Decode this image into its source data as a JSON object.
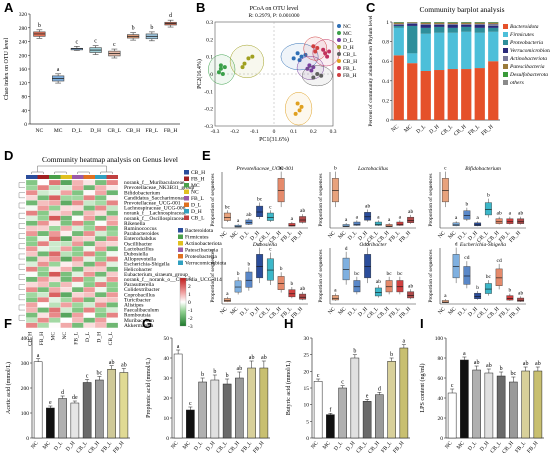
{
  "panels": {
    "A": "A",
    "B": "B",
    "C": "C",
    "D": "D",
    "E": "E",
    "F": "F",
    "G": "G",
    "H": "H",
    "I": "I"
  },
  "groups": [
    "NC",
    "MC",
    "D_L",
    "D_H",
    "CB_L",
    "CB_H",
    "FB_L",
    "FB_H"
  ],
  "group_labels": [
    "NC",
    "MC",
    "D_L",
    "D_H",
    "CB_L",
    "CB_H",
    "FB_L",
    "FB_H"
  ],
  "chart_data": [
    {
      "id": "A",
      "type": "box",
      "ylabel": "Chao index on OTU level",
      "ylim": [
        0,
        320
      ],
      "yticks": [
        0,
        40,
        80,
        120,
        160,
        200,
        240,
        280,
        320
      ],
      "categories": [
        "NC",
        "MC",
        "D_L",
        "D_H",
        "CB_L",
        "CB_H",
        "FB_L",
        "FB_H"
      ],
      "medians": [
        262,
        132,
        220,
        215,
        205,
        255,
        255,
        292
      ],
      "q1": [
        255,
        125,
        220,
        208,
        198,
        250,
        248,
        288
      ],
      "q3": [
        268,
        140,
        220,
        222,
        212,
        260,
        262,
        296
      ],
      "letters": [
        "b",
        "a",
        "c",
        "c",
        "c",
        "b",
        "b",
        "d"
      ],
      "colors": [
        "#e7755a",
        "#7fb0e0",
        "#7fb0e0",
        "#9fd0d8",
        "#e7b9a6",
        "#e8a27c",
        "#9fc8e0",
        "#e7755a"
      ]
    },
    {
      "id": "B",
      "type": "scatter",
      "title": "PCoA on OTU level",
      "subtitle": "R: 0.2979, P: 0.001000",
      "xlabel": "PC1(31.6%)",
      "ylabel": "PC2(16.4%)",
      "xlim": [
        -0.3,
        0.3
      ],
      "ylim": [
        -0.3,
        0.3
      ],
      "series": [
        {
          "name": "NC",
          "color": "#2f6fb5",
          "points": [
            [
              0.12,
              0.12
            ],
            [
              0.14,
              0.1
            ],
            [
              0.1,
              0.09
            ],
            [
              0.13,
              0.08
            ],
            [
              0.16,
              0.11
            ]
          ]
        },
        {
          "name": "MC",
          "color": "#3aa04a",
          "points": [
            [
              -0.27,
              0.03
            ],
            [
              -0.28,
              0.01
            ],
            [
              -0.25,
              0.04
            ],
            [
              -0.26,
              0.0
            ],
            [
              -0.27,
              0.05
            ]
          ]
        },
        {
          "name": "D_L",
          "color": "#7a3ea0",
          "points": [
            [
              0.17,
              0.03
            ],
            [
              0.19,
              0.02
            ],
            [
              0.18,
              0.05
            ],
            [
              0.2,
              0.04
            ]
          ]
        },
        {
          "name": "D_H",
          "color": "#a0a020",
          "points": [
            [
              -0.15,
              0.06
            ],
            [
              -0.16,
              0.04
            ],
            [
              -0.13,
              0.09
            ],
            [
              -0.11,
              0.1
            ]
          ]
        },
        {
          "name": "CB_L",
          "color": "#606060",
          "points": [
            [
              0.2,
              -0.02
            ],
            [
              0.22,
              0.0
            ],
            [
              0.24,
              -0.01
            ]
          ]
        },
        {
          "name": "CB_H",
          "color": "#e0a020",
          "points": [
            [
              0.12,
              -0.17
            ],
            [
              0.14,
              -0.19
            ],
            [
              0.13,
              -0.21
            ],
            [
              0.11,
              -0.23
            ]
          ]
        },
        {
          "name": "FB_L",
          "color": "#c03060",
          "points": [
            [
              0.26,
              0.12
            ],
            [
              0.27,
              0.1
            ],
            [
              0.25,
              0.14
            ],
            [
              0.28,
              0.13
            ]
          ]
        },
        {
          "name": "FB_H",
          "color": "#d04040",
          "points": [
            [
              0.2,
              0.16
            ],
            [
              0.22,
              0.15
            ],
            [
              0.21,
              0.13
            ]
          ]
        }
      ]
    },
    {
      "id": "C",
      "type": "stacked_bar",
      "title": "Community barplot analysis",
      "ylabel": "Percent of community abundance on Phylum level",
      "ylim": [
        0,
        1
      ],
      "yticks": [
        0,
        0.2,
        0.4,
        0.6,
        0.8,
        1.0
      ],
      "categories": [
        "NC",
        "MC",
        "D_L",
        "D_H",
        "CB_L",
        "CB_H",
        "FB_L",
        "FB_H"
      ],
      "series": [
        {
          "name": "Bacteroidota",
          "color": "#e5512a",
          "values": [
            0.66,
            0.58,
            0.5,
            0.51,
            0.52,
            0.52,
            0.53,
            0.6
          ]
        },
        {
          "name": "Firmicutes",
          "color": "#4dbfd9",
          "values": [
            0.28,
            0.1,
            0.38,
            0.38,
            0.37,
            0.38,
            0.36,
            0.3
          ]
        },
        {
          "name": "Proteobacteria",
          "color": "#2f8f9b",
          "values": [
            0.02,
            0.28,
            0.06,
            0.06,
            0.05,
            0.05,
            0.05,
            0.04
          ]
        },
        {
          "name": "Verrucomicrobiota",
          "color": "#2a2a7a",
          "values": [
            0.01,
            0.02,
            0.03,
            0.02,
            0.03,
            0.02,
            0.03,
            0.02
          ]
        },
        {
          "name": "Actinobacteriota",
          "color": "#7a7a9a",
          "values": [
            0.01,
            0.01,
            0.01,
            0.01,
            0.01,
            0.01,
            0.01,
            0.02
          ]
        },
        {
          "name": "Patescibacteria",
          "color": "#9a7a3a",
          "values": [
            0.01,
            0.005,
            0.01,
            0.01,
            0.01,
            0.01,
            0.01,
            0.01
          ]
        },
        {
          "name": "Desulfobacterota",
          "color": "#3a9a3a",
          "values": [
            0.005,
            0.003,
            0.005,
            0.005,
            0.005,
            0.005,
            0.005,
            0.005
          ]
        },
        {
          "name": "others",
          "color": "#8a8a8a",
          "values": [
            0.005,
            0.002,
            0.005,
            0.005,
            0.005,
            0.005,
            0.005,
            0.005
          ]
        }
      ]
    },
    {
      "id": "D",
      "type": "heatmap",
      "title": "Community heatmap analysis on Genus level",
      "columns": [
        "CB_H",
        "FB_H",
        "MC",
        "NC",
        "FB_L",
        "D_L",
        "D_H",
        "CB_L"
      ],
      "rows": [
        "norank_f__Muribaculaceae",
        "Prevotellaceae_NK3B31_group",
        "Bifidobacterium",
        "Candidatus_Saccharimonas",
        "Prevotellaceae_UCG-001",
        "Lachnospiraceae_UCG-006",
        "norank_f__Lachnospiraceae",
        "norank_f__Oscillospiraceae",
        "Rikenella",
        "Ruminococcus",
        "Parabacteroides",
        "Enterorhabdus",
        "Oscillibacter",
        "Lactobacillus",
        "Dubosiella",
        "Alloprevotella",
        "Escherichia-Shigella",
        "Helicobacter",
        "Eubacterium_siraeum_group",
        "norank_f__norank_o__Clostridia_UCG-014",
        "Parasutterella",
        "Colidextribacter",
        "Coprobacillus",
        "Turicibacter",
        "Alistipes",
        "Faecalibaculum",
        "Romboutsia",
        "Muribaculum",
        "Akkermansia"
      ],
      "phyla": [
        {
          "name": "Bacteroidota",
          "color": "#2b4d9b"
        },
        {
          "name": "Firmicutes",
          "color": "#4aa04a"
        },
        {
          "name": "Actinobacteriota",
          "color": "#e0c020"
        },
        {
          "name": "Patescibacteria",
          "color": "#9a5aa8"
        },
        {
          "name": "Proteobacteria",
          "color": "#e07020"
        },
        {
          "name": "Verrucomicrobiota",
          "color": "#30a0c0"
        }
      ],
      "groups_legend": [
        {
          "name": "CB_H",
          "color": "#2b4d9b"
        },
        {
          "name": "FB_H",
          "color": "#a02020"
        },
        {
          "name": "MC",
          "color": "#4aa04a"
        },
        {
          "name": "NC",
          "color": "#e0c020"
        },
        {
          "name": "FB_L",
          "color": "#9a5aa8"
        },
        {
          "name": "D_L",
          "color": "#e07020"
        },
        {
          "name": "D_H",
          "color": "#30a0c0"
        },
        {
          "name": "CB_L",
          "color": "#c04040"
        }
      ],
      "colorbar": {
        "min": -3,
        "max": 3,
        "ticks": [
          "3",
          "2",
          "1",
          "0",
          "-1",
          "-2",
          "-3"
        ]
      }
    },
    {
      "id": "E",
      "type": "box_multi",
      "subplots": [
        {
          "title": "Prevotellaceae_UCG-001",
          "ylabel": "Proportion of sequences",
          "medians": [
            0.04,
            0.005,
            0.02,
            0.06,
            0.04,
            0.14,
            0.01,
            0.03
          ],
          "letters": [
            "bc",
            "a",
            "ab",
            "bc",
            "c",
            "bc",
            "a",
            "ab"
          ]
        },
        {
          "title": "Lactobacillus",
          "ylabel": "Proportion of sequences",
          "medians": [
            0.1,
            0.005,
            0.01,
            0.03,
            0.01,
            0.005,
            0.01,
            0.02
          ],
          "letters": [
            "b",
            "a",
            "a",
            "ab",
            "a",
            "a",
            "a",
            "ab"
          ]
        },
        {
          "title": "Bifidobacterium",
          "ylabel": "Proportion of sequences",
          "medians": [
            0.06,
            0.005,
            0.02,
            0.005,
            0.03,
            0.01,
            0.01,
            0.01
          ],
          "letters": [
            "c",
            "a",
            "b",
            "a",
            "b",
            "ab",
            "a",
            "ab"
          ]
        },
        {
          "title": "Dubosiella",
          "ylabel": "Proportion of sequences",
          "medians": [
            0.01,
            0.05,
            0.07,
            0.11,
            0.1,
            0.06,
            0.03,
            0.02
          ],
          "letters": [
            "a",
            "b",
            "b",
            "c",
            "c",
            "b",
            "b",
            "ab"
          ]
        },
        {
          "title": "Odoribacter",
          "ylabel": "Proportion of sequences",
          "medians": [
            0.002,
            0.012,
            0.006,
            0.013,
            0.004,
            0.006,
            0.006,
            0.003
          ],
          "letters": [
            "a",
            "d",
            "bc",
            "d",
            "ab",
            "bc",
            "bc",
            "ab"
          ]
        },
        {
          "title": "Escherichia-Shigella",
          "ylabel": "Proportion of sequences",
          "medians": [
            0.001,
            0.02,
            0.015,
            0.004,
            0.008,
            0.014,
            0.003,
            0.002
          ],
          "letters": [
            "a",
            "d",
            "cd",
            "b",
            "bc",
            "cd",
            "b",
            "ab"
          ]
        }
      ]
    },
    {
      "id": "F",
      "type": "bar",
      "ylabel": "Acetic acid (mmol/L)",
      "ylim": [
        0,
        400
      ],
      "yticks": [
        0,
        100,
        200,
        300,
        400
      ],
      "categories": [
        "NC",
        "MC",
        "D_L",
        "D_H",
        "CB_L",
        "CB_H",
        "FB_L",
        "FB_H"
      ],
      "values": [
        305,
        120,
        158,
        140,
        222,
        232,
        275,
        262
      ],
      "errors": [
        12,
        8,
        10,
        8,
        12,
        14,
        14,
        16
      ],
      "letters": [
        "a",
        "e",
        "d",
        "de",
        "c",
        "bc",
        "ab",
        "ab"
      ]
    },
    {
      "id": "G",
      "type": "bar",
      "ylabel": "Propionic acid (mmol/L)",
      "ylim": [
        0,
        50
      ],
      "yticks": [
        0,
        10,
        20,
        30,
        40,
        50
      ],
      "categories": [
        "NC",
        "MC",
        "D_L",
        "D_H",
        "CB_L",
        "CB_H",
        "FB_L",
        "FB_H"
      ],
      "values": [
        42,
        14,
        28,
        29,
        27,
        30,
        35,
        35
      ],
      "errors": [
        2,
        1.5,
        2,
        2.5,
        2.5,
        3,
        3.5,
        3.5
      ],
      "letters": [
        "a",
        "c",
        "b",
        "b",
        "b",
        "ab",
        "ab",
        "ab"
      ]
    },
    {
      "id": "H",
      "type": "bar",
      "ylabel": "Butyric acid (mmol/L)",
      "ylim": [
        0,
        30
      ],
      "yticks": [
        0,
        5,
        10,
        15,
        20,
        25,
        30
      ],
      "categories": [
        "NC",
        "MC",
        "D_L",
        "D_H",
        "CB_L",
        "CB_H",
        "FB_L",
        "FB_H"
      ],
      "values": [
        17,
        7,
        15,
        24,
        11,
        13,
        23,
        27
      ],
      "errors": [
        0.7,
        0.4,
        0.7,
        1,
        0.6,
        0.7,
        1,
        1
      ],
      "letters": [
        "c",
        "f",
        "c",
        "b",
        "e",
        "d",
        "b",
        "a"
      ]
    },
    {
      "id": "I",
      "type": "bar",
      "ylabel": "LPS content (ng/ml)",
      "ylim": [
        0,
        100
      ],
      "yticks": [
        0,
        20,
        40,
        60,
        80,
        100
      ],
      "categories": [
        "NC",
        "MC",
        "D_L",
        "D_H",
        "CB_L",
        "CB_H",
        "FB_L",
        "FB_H"
      ],
      "values": [
        45,
        78,
        68,
        65,
        62,
        56,
        67,
        67
      ],
      "errors": [
        4,
        3,
        4,
        4,
        4,
        5,
        4,
        4
      ],
      "letters": [
        "c",
        "a",
        "ab",
        "ab",
        "b",
        "bc",
        "ab",
        "ab"
      ]
    }
  ]
}
